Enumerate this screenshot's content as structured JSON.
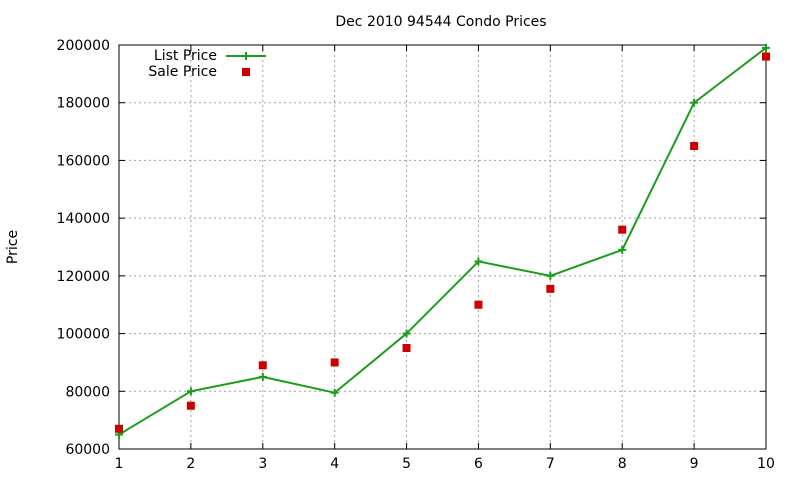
{
  "chart_data": {
    "type": "line",
    "title": "Dec 2010 94544 Condo Prices",
    "xlabel": "",
    "ylabel": "Price",
    "x": [
      1,
      2,
      3,
      4,
      5,
      6,
      7,
      8,
      9,
      10
    ],
    "xlim": [
      1,
      10
    ],
    "ylim": [
      60000,
      200000
    ],
    "x_ticks": [
      "1",
      "2",
      "3",
      "4",
      "5",
      "6",
      "7",
      "8",
      "9",
      "10"
    ],
    "y_ticks": [
      "60000",
      "80000",
      "100000",
      "120000",
      "140000",
      "160000",
      "180000",
      "200000"
    ],
    "y_tick_values": [
      60000,
      80000,
      100000,
      120000,
      140000,
      160000,
      180000,
      200000
    ],
    "grid": true,
    "legend_position": "top-left",
    "series": [
      {
        "name": "List Price",
        "style": "line-with-plus-markers",
        "color": "#1a9e1a",
        "values": [
          65000,
          80000,
          85000,
          79500,
          100000,
          125000,
          120000,
          129000,
          180000,
          199000
        ]
      },
      {
        "name": "Sale Price",
        "style": "square-markers",
        "color": "#cc0000",
        "values": [
          67000,
          75000,
          89000,
          90000,
          95000,
          110000,
          115500,
          136000,
          165000,
          196000
        ]
      }
    ]
  }
}
